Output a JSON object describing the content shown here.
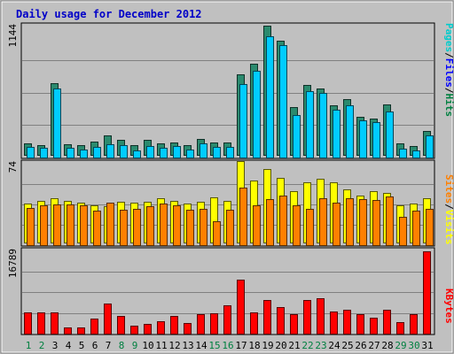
{
  "chart_data": {
    "type": "bar",
    "title": "Daily usage for December 2012",
    "categories": [
      "1",
      "2",
      "3",
      "4",
      "5",
      "6",
      "7",
      "8",
      "9",
      "10",
      "11",
      "12",
      "13",
      "14",
      "15",
      "16",
      "17",
      "18",
      "19",
      "20",
      "21",
      "22",
      "23",
      "24",
      "25",
      "26",
      "27",
      "28",
      "29",
      "30",
      "31"
    ],
    "weekend_days": [
      "1",
      "2",
      "8",
      "9",
      "15",
      "16",
      "22",
      "23",
      "29",
      "30"
    ],
    "panels": [
      {
        "name": "hits-files-pages",
        "ymax_label": "1144",
        "ymax": 1144,
        "legend": [
          {
            "text": "Pages",
            "color": "#00cccc"
          },
          {
            "text": "/",
            "color": "#000000"
          },
          {
            "text": "Files",
            "color": "#0000ff"
          },
          {
            "text": "/",
            "color": "#000000"
          },
          {
            "text": "Hits",
            "color": "#008040"
          }
        ],
        "series": [
          {
            "name": "Hits",
            "color": "#2b8a6e",
            "values": [
              100,
              90,
              635,
              95,
              90,
              115,
              175,
              130,
              85,
              130,
              100,
              110,
              85,
              140,
              110,
              110,
              715,
              810,
              1144,
              1010,
              420,
              620,
              585,
              440,
              490,
              340,
              325,
              450,
              100,
              75,
              215
            ]
          },
          {
            "name": "Files",
            "color": "#00ccff",
            "values": [
              95,
              85,
              610,
              90,
              70,
              95,
              120,
              110,
              60,
              105,
              90,
              100,
              70,
              125,
              95,
              95,
              650,
              770,
              1075,
              995,
              380,
              590,
              575,
              420,
              460,
              330,
              310,
              405,
              75,
              60,
              195
            ]
          }
        ]
      },
      {
        "name": "visits-sites",
        "ymax_label": "74",
        "ymax": 74,
        "legend": [
          {
            "text": "Sites",
            "color": "#ff8000"
          },
          {
            "text": "/",
            "color": "#000000"
          },
          {
            "text": "Visits",
            "color": "#ffff00"
          }
        ],
        "series": [
          {
            "name": "Visits",
            "color": "#ffff00",
            "values": [
              35,
              38,
              40,
              38,
              36,
              34,
              33,
              37,
              36,
              37,
              40,
              38,
              35,
              37,
              41,
              38,
              74,
              56,
              67,
              59,
              47,
              55,
              58,
              55,
              48,
              43,
              47,
              45,
              34,
              35,
              40
            ]
          },
          {
            "name": "Sites",
            "color": "#ff8000",
            "values": [
              34,
              36,
              37,
              37,
              36,
              31,
              39,
              32,
              33,
              35,
              38,
              36,
              32,
              33,
              22,
              32,
              52,
              36,
              42,
              45,
              36,
              33,
              43,
              39,
              43,
              42,
              41,
              44,
              26,
              31,
              33
            ]
          }
        ]
      },
      {
        "name": "kbytes",
        "ymax_label": "16789",
        "ymax": 16789,
        "legend": [
          {
            "text": "KBytes",
            "color": "#ff0000"
          }
        ],
        "series": [
          {
            "name": "KBytes",
            "color": "#ff0000",
            "values": [
              4300,
              4300,
              4300,
              1300,
              1300,
              3100,
              6200,
              3600,
              1700,
              2000,
              2500,
              3600,
              2200,
              4000,
              4200,
              5800,
              11000,
              4400,
              6900,
              5400,
              3900,
              6800,
              7200,
              4600,
              4800,
              3900,
              3200,
              4800,
              2300,
              4000,
              16789
            ]
          }
        ]
      }
    ]
  }
}
